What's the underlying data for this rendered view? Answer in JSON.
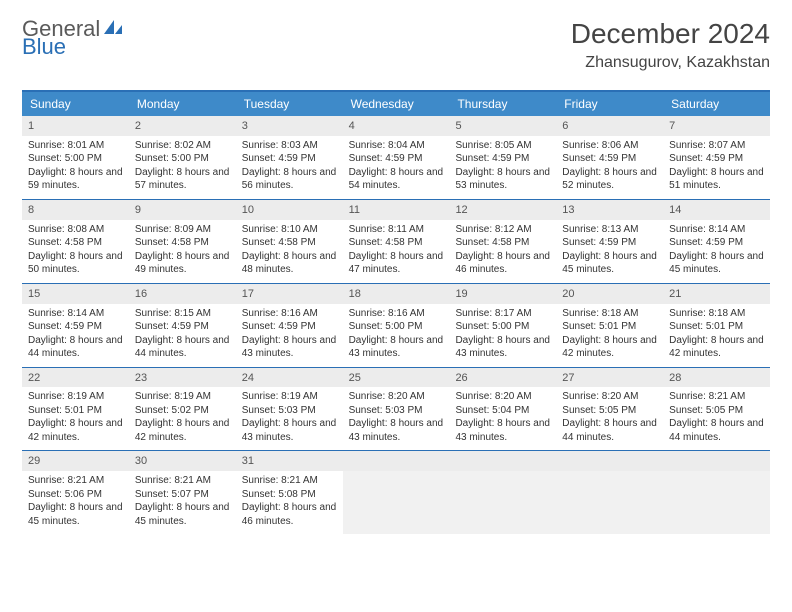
{
  "logo": {
    "general": "General",
    "blue": "Blue"
  },
  "header": {
    "month_title": "December 2024",
    "location": "Zhansugurov, Kazakhstan"
  },
  "colors": {
    "header_bg": "#3e8ac9",
    "header_text": "#ffffff",
    "border": "#2a6fb5",
    "daynum_bg": "#ececec",
    "body_text": "#333333",
    "logo_gray": "#5a5a5a",
    "logo_blue": "#2a6fb5"
  },
  "day_names": [
    "Sunday",
    "Monday",
    "Tuesday",
    "Wednesday",
    "Thursday",
    "Friday",
    "Saturday"
  ],
  "weeks": [
    [
      {
        "day": "1",
        "sunrise": "Sunrise: 8:01 AM",
        "sunset": "Sunset: 5:00 PM",
        "daylight": "Daylight: 8 hours and 59 minutes."
      },
      {
        "day": "2",
        "sunrise": "Sunrise: 8:02 AM",
        "sunset": "Sunset: 5:00 PM",
        "daylight": "Daylight: 8 hours and 57 minutes."
      },
      {
        "day": "3",
        "sunrise": "Sunrise: 8:03 AM",
        "sunset": "Sunset: 4:59 PM",
        "daylight": "Daylight: 8 hours and 56 minutes."
      },
      {
        "day": "4",
        "sunrise": "Sunrise: 8:04 AM",
        "sunset": "Sunset: 4:59 PM",
        "daylight": "Daylight: 8 hours and 54 minutes."
      },
      {
        "day": "5",
        "sunrise": "Sunrise: 8:05 AM",
        "sunset": "Sunset: 4:59 PM",
        "daylight": "Daylight: 8 hours and 53 minutes."
      },
      {
        "day": "6",
        "sunrise": "Sunrise: 8:06 AM",
        "sunset": "Sunset: 4:59 PM",
        "daylight": "Daylight: 8 hours and 52 minutes."
      },
      {
        "day": "7",
        "sunrise": "Sunrise: 8:07 AM",
        "sunset": "Sunset: 4:59 PM",
        "daylight": "Daylight: 8 hours and 51 minutes."
      }
    ],
    [
      {
        "day": "8",
        "sunrise": "Sunrise: 8:08 AM",
        "sunset": "Sunset: 4:58 PM",
        "daylight": "Daylight: 8 hours and 50 minutes."
      },
      {
        "day": "9",
        "sunrise": "Sunrise: 8:09 AM",
        "sunset": "Sunset: 4:58 PM",
        "daylight": "Daylight: 8 hours and 49 minutes."
      },
      {
        "day": "10",
        "sunrise": "Sunrise: 8:10 AM",
        "sunset": "Sunset: 4:58 PM",
        "daylight": "Daylight: 8 hours and 48 minutes."
      },
      {
        "day": "11",
        "sunrise": "Sunrise: 8:11 AM",
        "sunset": "Sunset: 4:58 PM",
        "daylight": "Daylight: 8 hours and 47 minutes."
      },
      {
        "day": "12",
        "sunrise": "Sunrise: 8:12 AM",
        "sunset": "Sunset: 4:58 PM",
        "daylight": "Daylight: 8 hours and 46 minutes."
      },
      {
        "day": "13",
        "sunrise": "Sunrise: 8:13 AM",
        "sunset": "Sunset: 4:59 PM",
        "daylight": "Daylight: 8 hours and 45 minutes."
      },
      {
        "day": "14",
        "sunrise": "Sunrise: 8:14 AM",
        "sunset": "Sunset: 4:59 PM",
        "daylight": "Daylight: 8 hours and 45 minutes."
      }
    ],
    [
      {
        "day": "15",
        "sunrise": "Sunrise: 8:14 AM",
        "sunset": "Sunset: 4:59 PM",
        "daylight": "Daylight: 8 hours and 44 minutes."
      },
      {
        "day": "16",
        "sunrise": "Sunrise: 8:15 AM",
        "sunset": "Sunset: 4:59 PM",
        "daylight": "Daylight: 8 hours and 44 minutes."
      },
      {
        "day": "17",
        "sunrise": "Sunrise: 8:16 AM",
        "sunset": "Sunset: 4:59 PM",
        "daylight": "Daylight: 8 hours and 43 minutes."
      },
      {
        "day": "18",
        "sunrise": "Sunrise: 8:16 AM",
        "sunset": "Sunset: 5:00 PM",
        "daylight": "Daylight: 8 hours and 43 minutes."
      },
      {
        "day": "19",
        "sunrise": "Sunrise: 8:17 AM",
        "sunset": "Sunset: 5:00 PM",
        "daylight": "Daylight: 8 hours and 43 minutes."
      },
      {
        "day": "20",
        "sunrise": "Sunrise: 8:18 AM",
        "sunset": "Sunset: 5:01 PM",
        "daylight": "Daylight: 8 hours and 42 minutes."
      },
      {
        "day": "21",
        "sunrise": "Sunrise: 8:18 AM",
        "sunset": "Sunset: 5:01 PM",
        "daylight": "Daylight: 8 hours and 42 minutes."
      }
    ],
    [
      {
        "day": "22",
        "sunrise": "Sunrise: 8:19 AM",
        "sunset": "Sunset: 5:01 PM",
        "daylight": "Daylight: 8 hours and 42 minutes."
      },
      {
        "day": "23",
        "sunrise": "Sunrise: 8:19 AM",
        "sunset": "Sunset: 5:02 PM",
        "daylight": "Daylight: 8 hours and 42 minutes."
      },
      {
        "day": "24",
        "sunrise": "Sunrise: 8:19 AM",
        "sunset": "Sunset: 5:03 PM",
        "daylight": "Daylight: 8 hours and 43 minutes."
      },
      {
        "day": "25",
        "sunrise": "Sunrise: 8:20 AM",
        "sunset": "Sunset: 5:03 PM",
        "daylight": "Daylight: 8 hours and 43 minutes."
      },
      {
        "day": "26",
        "sunrise": "Sunrise: 8:20 AM",
        "sunset": "Sunset: 5:04 PM",
        "daylight": "Daylight: 8 hours and 43 minutes."
      },
      {
        "day": "27",
        "sunrise": "Sunrise: 8:20 AM",
        "sunset": "Sunset: 5:05 PM",
        "daylight": "Daylight: 8 hours and 44 minutes."
      },
      {
        "day": "28",
        "sunrise": "Sunrise: 8:21 AM",
        "sunset": "Sunset: 5:05 PM",
        "daylight": "Daylight: 8 hours and 44 minutes."
      }
    ],
    [
      {
        "day": "29",
        "sunrise": "Sunrise: 8:21 AM",
        "sunset": "Sunset: 5:06 PM",
        "daylight": "Daylight: 8 hours and 45 minutes."
      },
      {
        "day": "30",
        "sunrise": "Sunrise: 8:21 AM",
        "sunset": "Sunset: 5:07 PM",
        "daylight": "Daylight: 8 hours and 45 minutes."
      },
      {
        "day": "31",
        "sunrise": "Sunrise: 8:21 AM",
        "sunset": "Sunset: 5:08 PM",
        "daylight": "Daylight: 8 hours and 46 minutes."
      },
      null,
      null,
      null,
      null
    ]
  ]
}
